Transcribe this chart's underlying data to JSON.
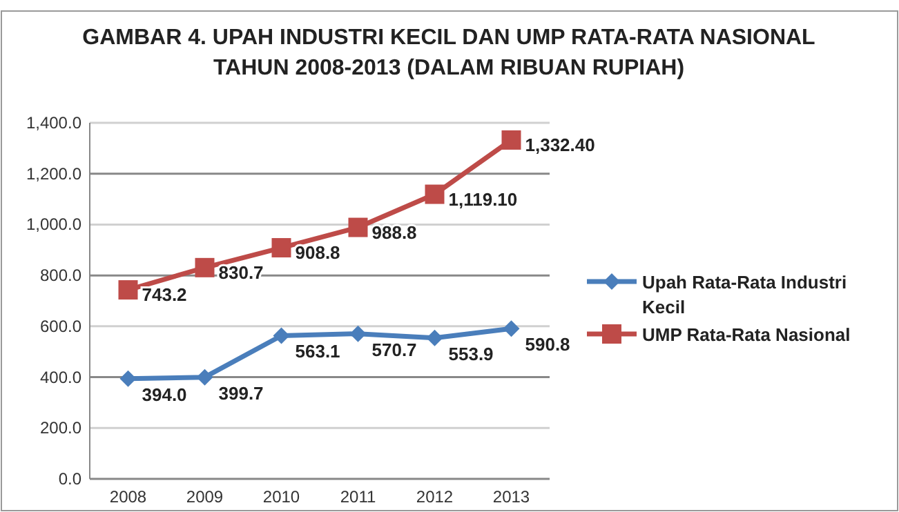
{
  "chart_data": {
    "type": "line",
    "title": "GAMBAR 4. UPAH INDUSTRI KECIL DAN UMP RATA-RATA NASIONAL TAHUN 2008-2013 (DALAM RIBUAN RUPIAH)",
    "categories": [
      "2008",
      "2009",
      "2010",
      "2011",
      "2012",
      "2013"
    ],
    "series": [
      {
        "name": "Upah Rata-Rata Industri Kecil",
        "color": "#4a7ebb",
        "marker": "diamond",
        "values": [
          394.0,
          399.7,
          563.1,
          570.7,
          553.9,
          590.8
        ],
        "value_labels": [
          "394.0",
          "399.7",
          "563.1",
          "570.7",
          "553.9",
          "590.8"
        ]
      },
      {
        "name": "UMP Rata-Rata Nasional",
        "color": "#be4b48",
        "marker": "square",
        "values": [
          743.2,
          830.7,
          908.8,
          988.8,
          1119.1,
          1332.4
        ],
        "value_labels": [
          "743.2",
          "830.7",
          "908.8",
          "988.8",
          "1,119.10",
          "1,332.40"
        ]
      }
    ],
    "ylim": [
      0,
      1400
    ],
    "yticks": [
      {
        "value": 0,
        "label": "0.0"
      },
      {
        "value": 200,
        "label": "200.0"
      },
      {
        "value": 400,
        "label": "400.0"
      },
      {
        "value": 600,
        "label": "600.0"
      },
      {
        "value": 800,
        "label": "800.0"
      },
      {
        "value": 1000,
        "label": "1,000.0"
      },
      {
        "value": 1200,
        "label": "1,200.0"
      },
      {
        "value": 1400,
        "label": "1,400.0"
      }
    ],
    "grid": "y",
    "legend": "right"
  }
}
